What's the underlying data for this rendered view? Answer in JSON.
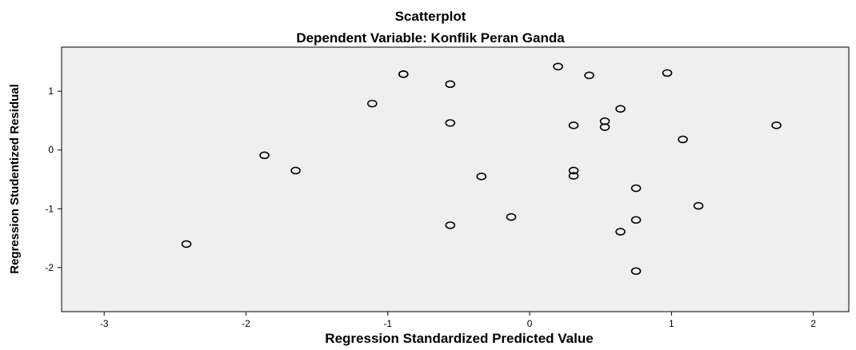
{
  "chart_data": {
    "type": "scatter",
    "title": "Scatterplot",
    "subtitle": "Dependent Variable: Konflik Peran Ganda",
    "xlabel": "Regression Standardized Predicted Value",
    "ylabel": "Regression Studentized Residual",
    "xlim": [
      -3.3,
      2.25
    ],
    "ylim": [
      -2.75,
      1.75
    ],
    "xticks": [
      -3,
      -2,
      -1,
      0,
      1,
      2
    ],
    "yticks": [
      1,
      0,
      -1,
      -2
    ],
    "grid": false,
    "marker": "open-circle",
    "colors": {
      "plot_background": "#efefef",
      "marker": "#000000",
      "axis": "#000000"
    },
    "points": [
      {
        "x": -2.42,
        "y": -1.6
      },
      {
        "x": -1.87,
        "y": -0.09
      },
      {
        "x": -1.65,
        "y": -0.35
      },
      {
        "x": -1.11,
        "y": 0.79
      },
      {
        "x": -0.89,
        "y": 1.29
      },
      {
        "x": -0.89,
        "y": 1.29
      },
      {
        "x": -0.56,
        "y": 1.12
      },
      {
        "x": -0.56,
        "y": 0.46
      },
      {
        "x": -0.56,
        "y": -1.28
      },
      {
        "x": -0.34,
        "y": -0.45
      },
      {
        "x": -0.13,
        "y": -1.14
      },
      {
        "x": 0.2,
        "y": 1.42
      },
      {
        "x": 0.31,
        "y": 0.42
      },
      {
        "x": 0.31,
        "y": -0.35
      },
      {
        "x": 0.31,
        "y": -0.44
      },
      {
        "x": 0.42,
        "y": 1.27
      },
      {
        "x": 0.53,
        "y": 0.49
      },
      {
        "x": 0.53,
        "y": 0.39
      },
      {
        "x": 0.64,
        "y": 0.7
      },
      {
        "x": 0.64,
        "y": -1.39
      },
      {
        "x": 0.75,
        "y": -0.65
      },
      {
        "x": 0.75,
        "y": -1.19
      },
      {
        "x": 0.75,
        "y": -2.06
      },
      {
        "x": 0.97,
        "y": 1.31
      },
      {
        "x": 1.08,
        "y": 0.18
      },
      {
        "x": 1.19,
        "y": -0.95
      },
      {
        "x": 1.74,
        "y": 0.42
      }
    ]
  }
}
